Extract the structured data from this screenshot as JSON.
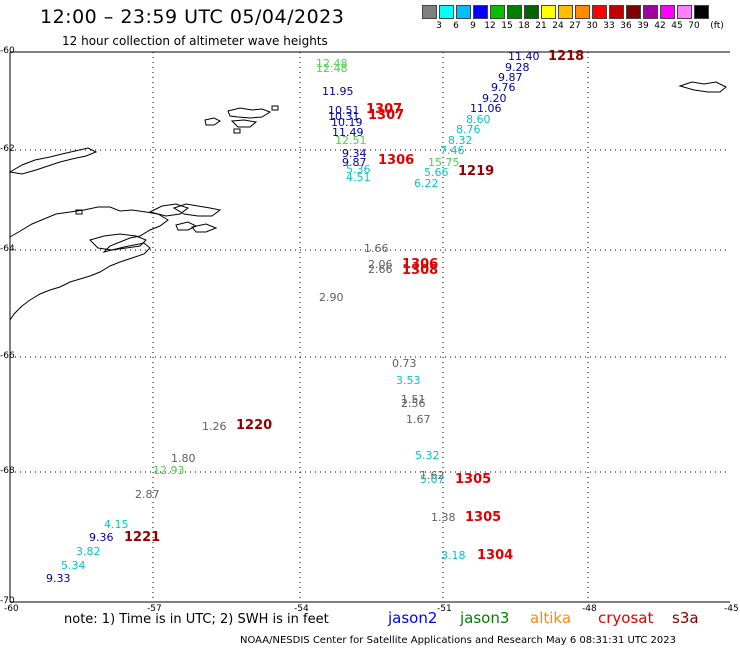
{
  "header": {
    "title": "12:00 – 23:59 UTC 05/04/2023",
    "subtitle": "12 hour collection of altimeter wave heights"
  },
  "colorbar": {
    "unit": "(ft)",
    "labels": [
      "3",
      "6",
      "9",
      "12",
      "15",
      "18",
      "21",
      "24",
      "27",
      "30",
      "33",
      "36",
      "39",
      "42",
      "45",
      "70"
    ],
    "colors": [
      "#808080",
      "#00ffff",
      "#00bfff",
      "#0000ff",
      "#00c000",
      "#008000",
      "#006400",
      "#ffff00",
      "#ffbf00",
      "#ff8c00",
      "#ff0000",
      "#c00000",
      "#800000",
      "#a000a0",
      "#ff00ff",
      "#ff80ff",
      "#000000"
    ]
  },
  "axes": {
    "lat_labels": [
      "-60",
      "-62",
      "-64",
      "-66",
      "-68",
      "-70"
    ],
    "lon_labels": [
      "-60",
      "-57",
      "-54",
      "-51",
      "-48",
      "-45"
    ]
  },
  "colors": {
    "gray": "#606060",
    "cyan": "#00c8c8",
    "dblue": "#0000a0",
    "lgreen": "#50d050",
    "red": "#e00000",
    "dred": "#900000"
  },
  "readings": [
    {
      "v": "12.48",
      "c": "lgreen"
    },
    {
      "v": "12.48",
      "c": "lgreen"
    },
    {
      "v": "11.95",
      "c": "dblue"
    },
    {
      "v": "10.51",
      "c": "dblue"
    },
    {
      "v": "10.31",
      "c": "dblue"
    },
    {
      "v": "10.19",
      "c": "dblue"
    },
    {
      "v": "11.49",
      "c": "dblue"
    },
    {
      "v": "12.51",
      "c": "lgreen"
    },
    {
      "v": "9.34",
      "c": "dblue"
    },
    {
      "v": "9.87",
      "c": "dblue"
    },
    {
      "v": "5.36",
      "c": "cyan"
    },
    {
      "v": "4.51",
      "c": "cyan"
    },
    {
      "v": "11.40",
      "c": "dblue"
    },
    {
      "v": "9.28",
      "c": "dblue"
    },
    {
      "v": "9.87",
      "c": "dblue"
    },
    {
      "v": "9.76",
      "c": "dblue"
    },
    {
      "v": "9.20",
      "c": "dblue"
    },
    {
      "v": "11.06",
      "c": "dblue"
    },
    {
      "v": "8.60",
      "c": "cyan"
    },
    {
      "v": "8.76",
      "c": "cyan"
    },
    {
      "v": "8.32",
      "c": "cyan"
    },
    {
      "v": "7.46",
      "c": "cyan"
    },
    {
      "v": "15.75",
      "c": "lgreen"
    },
    {
      "v": "5.66",
      "c": "cyan"
    },
    {
      "v": "6.22",
      "c": "cyan"
    },
    {
      "v": "1.66",
      "c": "gray"
    },
    {
      "v": "2.06",
      "c": "gray"
    },
    {
      "v": "2.66",
      "c": "gray"
    },
    {
      "v": "2.90",
      "c": "gray"
    },
    {
      "v": "0.73",
      "c": "gray"
    },
    {
      "v": "3.53",
      "c": "cyan"
    },
    {
      "v": "1.51",
      "c": "gray"
    },
    {
      "v": "2.56",
      "c": "gray"
    },
    {
      "v": "1.67",
      "c": "gray"
    },
    {
      "v": "1.26",
      "c": "gray"
    },
    {
      "v": "1.80",
      "c": "gray"
    },
    {
      "v": "12.93",
      "c": "lgreen"
    },
    {
      "v": "2.87",
      "c": "gray"
    },
    {
      "v": "5.32",
      "c": "cyan"
    },
    {
      "v": "1.62",
      "c": "gray"
    },
    {
      "v": "5.07",
      "c": "cyan"
    },
    {
      "v": "1.38",
      "c": "gray"
    },
    {
      "v": "3.18",
      "c": "cyan"
    },
    {
      "v": "4.15",
      "c": "cyan"
    },
    {
      "v": "9.36",
      "c": "dblue"
    },
    {
      "v": "3.82",
      "c": "cyan"
    },
    {
      "v": "5.34",
      "c": "cyan"
    },
    {
      "v": "9.33",
      "c": "dblue"
    }
  ],
  "times": [
    {
      "v": "1218",
      "c": "dred"
    },
    {
      "v": "1307",
      "c": "red"
    },
    {
      "v": "1307",
      "c": "red"
    },
    {
      "v": "1306",
      "c": "red"
    },
    {
      "v": "1219",
      "c": "dred"
    },
    {
      "v": "1306",
      "c": "red"
    },
    {
      "v": "1308",
      "c": "red"
    },
    {
      "v": "1220",
      "c": "dred"
    },
    {
      "v": "1305",
      "c": "red"
    },
    {
      "v": "1305",
      "c": "red"
    },
    {
      "v": "1304",
      "c": "red"
    },
    {
      "v": "1221",
      "c": "dred"
    }
  ],
  "footer": {
    "note": "note: 1) Time is in UTC; 2) SWH is in feet",
    "satellites": [
      {
        "name": "jason2",
        "color": "#0000ff"
      },
      {
        "name": "jason3",
        "color": "#008000"
      },
      {
        "name": "altika",
        "color": "#ff8c00"
      },
      {
        "name": "cryosat",
        "color": "#e00000"
      },
      {
        "name": "s3a",
        "color": "#800000"
      }
    ],
    "credit": "NOAA/NESDIS Center for Satellite Applications and Research    May  6 08:31:31 UTC 2023"
  }
}
